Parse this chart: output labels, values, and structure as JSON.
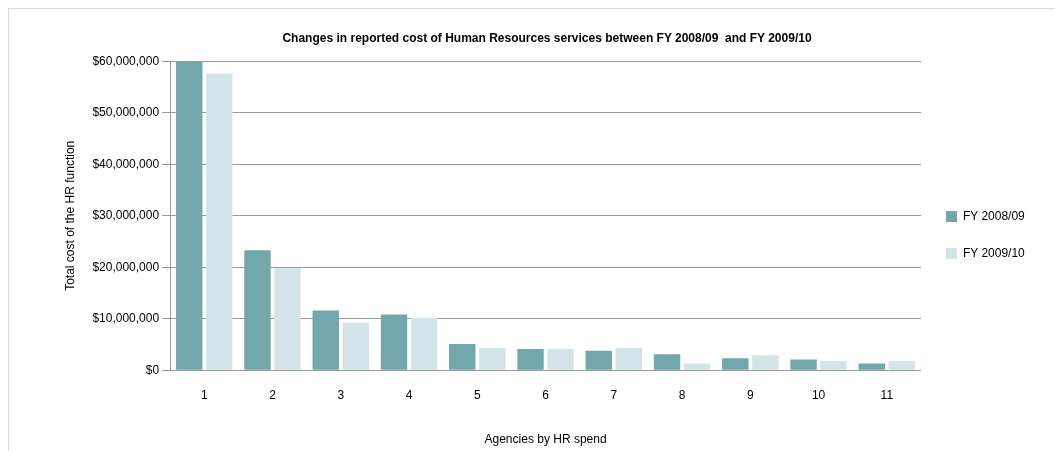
{
  "chart_data": {
    "type": "bar",
    "title": "Changes in reported cost of Human Resources services between FY 2008/09  and FY 2009/10",
    "xlabel": "Agencies by HR spend",
    "ylabel": "Total cost of the HR function",
    "categories": [
      "1",
      "2",
      "3",
      "4",
      "5",
      "6",
      "7",
      "8",
      "9",
      "10",
      "11"
    ],
    "series": [
      {
        "name": "FY 2008/09",
        "color": "#72a7ac",
        "values": [
          60000000,
          23300000,
          11600000,
          10800000,
          5100000,
          4100000,
          3800000,
          3100000,
          2300000,
          2100000,
          1300000
        ]
      },
      {
        "name": "FY 2009/10",
        "color": "#d3e4e8",
        "values": [
          57600000,
          19800000,
          9200000,
          10200000,
          4300000,
          4100000,
          4300000,
          1300000,
          2900000,
          1800000,
          1800000
        ]
      }
    ],
    "ylim": [
      0,
      60000000
    ],
    "yticks": [
      {
        "value": 0,
        "label": "$0"
      },
      {
        "value": 10000000,
        "label": "$10,000,000"
      },
      {
        "value": 20000000,
        "label": "$20,000,000"
      },
      {
        "value": 30000000,
        "label": "$30,000,000"
      },
      {
        "value": 40000000,
        "label": "$40,000,000"
      },
      {
        "value": 50000000,
        "label": "$50,000,000"
      },
      {
        "value": 60000000,
        "label": "$60,000,000"
      }
    ],
    "grid": "y",
    "legend": "right"
  }
}
